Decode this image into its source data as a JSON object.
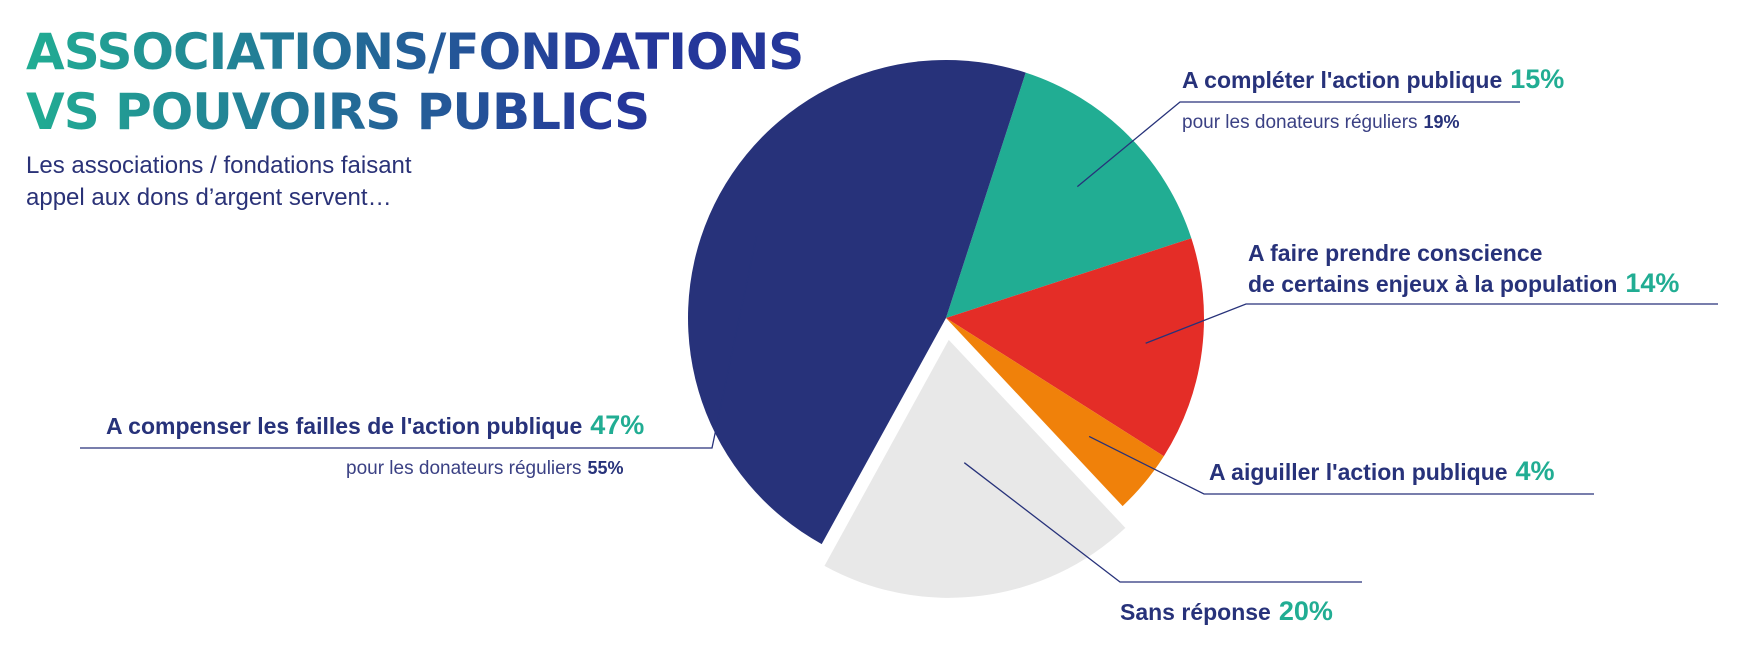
{
  "title_line1": "ASSOCIATIONS/FONDATIONS",
  "title_line2": "VS POUVOIRS PUBLICS",
  "subtitle_line1": "Les associations / fondations faisant",
  "subtitle_line2": "appel aux dons d’argent servent…",
  "regular_donors_prefix": "pour les donateurs réguliers",
  "colors": {
    "navy": "#27327a",
    "teal": "#21ad93",
    "red": "#e42d27",
    "orange": "#f0810a",
    "grey": "#e8e8e8"
  },
  "chart_data": {
    "type": "pie",
    "start_angle_deg": 18,
    "exploded_slice": "Sans réponse",
    "slices": [
      {
        "label": "A compléter l'action publique",
        "value": 15,
        "display": "15%",
        "color": "#21ad93",
        "regular_donors": "19%"
      },
      {
        "label": "A faire prendre conscience de certains enjeux à la population",
        "label_line1": "A faire prendre conscience",
        "label_line2": "de certains enjeux à la population",
        "value": 14,
        "display": "14%",
        "color": "#e42d27"
      },
      {
        "label": "A aiguiller l'action publique",
        "value": 4,
        "display": "4%",
        "color": "#f0810a"
      },
      {
        "label": "Sans réponse",
        "value": 20,
        "display": "20%",
        "color": "#e8e8e8"
      },
      {
        "label": "A compenser les failles de l'action publique",
        "value": 47,
        "display": "47%",
        "color": "#27327a",
        "regular_donors": "55%"
      }
    ]
  }
}
